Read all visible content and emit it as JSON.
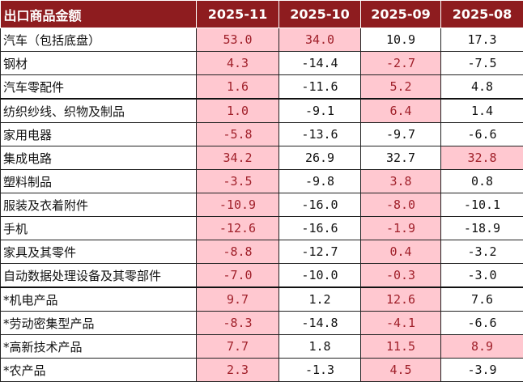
{
  "header": [
    "出口商品金额",
    "2025-11",
    "2025-10",
    "2025-09",
    "2025-08"
  ],
  "highlight_color": "#ffc8d0",
  "header_color": "#8e1c1f",
  "rows": [
    {
      "name": "汽车（包括底盘）",
      "values": [
        "53.0",
        "34.0",
        "10.9",
        "17.3"
      ],
      "highlight": [
        true,
        true,
        false,
        false
      ]
    },
    {
      "name": "钢材",
      "values": [
        "4.3",
        "-14.4",
        "-2.7",
        "-7.5"
      ],
      "highlight": [
        true,
        false,
        true,
        false
      ]
    },
    {
      "name": "汽车零配件",
      "values": [
        "1.6",
        "-11.6",
        "5.2",
        "4.8"
      ],
      "highlight": [
        true,
        false,
        true,
        false
      ]
    },
    {
      "name": "纺织纱线、织物及制品",
      "values": [
        "1.0",
        "-9.1",
        "6.4",
        "1.4"
      ],
      "highlight": [
        true,
        false,
        true,
        false
      ]
    },
    {
      "name": "家用电器",
      "values": [
        "-5.8",
        "-13.6",
        "-9.7",
        "-6.6"
      ],
      "highlight": [
        true,
        false,
        false,
        false
      ]
    },
    {
      "name": "集成电路",
      "values": [
        "34.2",
        "26.9",
        "32.7",
        "32.8"
      ],
      "highlight": [
        true,
        false,
        false,
        true
      ]
    },
    {
      "name": "塑料制品",
      "values": [
        "-3.5",
        "-9.8",
        "3.8",
        "0.8"
      ],
      "highlight": [
        true,
        false,
        true,
        false
      ]
    },
    {
      "name": "服装及衣着附件",
      "values": [
        "-10.9",
        "-16.0",
        "-8.0",
        "-10.1"
      ],
      "highlight": [
        true,
        false,
        true,
        false
      ]
    },
    {
      "name": "手机",
      "values": [
        "-12.6",
        "-16.6",
        "-1.9",
        "-18.9"
      ],
      "highlight": [
        true,
        false,
        true,
        false
      ]
    },
    {
      "name": "家具及其零件",
      "values": [
        "-8.8",
        "-12.7",
        "0.4",
        "-3.2"
      ],
      "highlight": [
        true,
        false,
        true,
        false
      ]
    },
    {
      "name": "自动数据处理设备及其零部件",
      "values": [
        "-7.0",
        "-10.0",
        "-0.3",
        "-3.0"
      ],
      "highlight": [
        true,
        false,
        true,
        false
      ]
    },
    {
      "name": "*机电产品",
      "values": [
        "9.7",
        "1.2",
        "12.6",
        "7.6"
      ],
      "highlight": [
        true,
        false,
        true,
        false
      ]
    },
    {
      "name": "*劳动密集型产品",
      "values": [
        "-8.3",
        "-14.8",
        "-4.1",
        "-6.6"
      ],
      "highlight": [
        true,
        false,
        true,
        false
      ]
    },
    {
      "name": "*高新技术产品",
      "values": [
        "7.7",
        "1.8",
        "11.5",
        "8.9"
      ],
      "highlight": [
        true,
        false,
        true,
        true
      ]
    },
    {
      "name": "*农产品",
      "values": [
        "2.3",
        "-1.3",
        "4.5",
        "-3.9"
      ],
      "highlight": [
        true,
        false,
        true,
        false
      ]
    }
  ]
}
